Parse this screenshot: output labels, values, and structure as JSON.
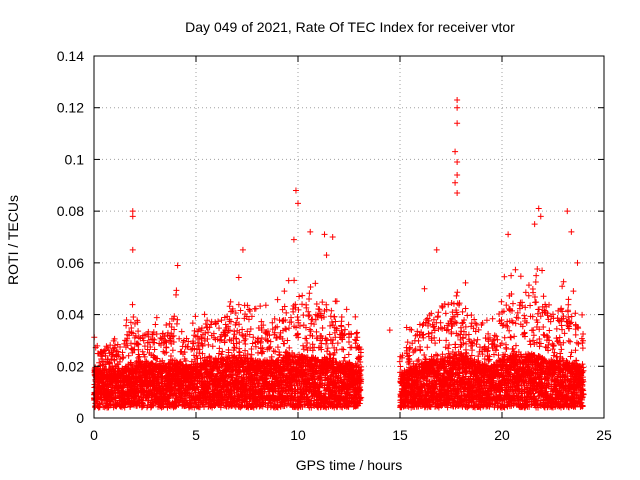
{
  "chart_data": {
    "type": "scatter",
    "title": "Day 049 of 2021, Rate Of TEC Index for receiver vtor",
    "xlabel": "GPS time / hours",
    "ylabel": "ROTI / TECUs",
    "xlim": [
      0,
      25
    ],
    "ylim": [
      0,
      0.14
    ],
    "xticks": [
      0,
      5,
      10,
      15,
      20,
      25
    ],
    "xtick_labels": [
      "0",
      "5",
      "10",
      "15",
      "20",
      "25"
    ],
    "yticks": [
      0,
      0.02,
      0.04,
      0.06,
      0.08,
      0.1,
      0.12,
      0.14
    ],
    "ytick_labels": [
      "0",
      "0.02",
      "0.04",
      "0.06",
      "0.08",
      "0.1",
      "0.12",
      "0.14"
    ],
    "grid": true,
    "marker": "+",
    "color": "#ff0000",
    "data_gap_hours": [
      13.1,
      15.0
    ],
    "notable_points": [
      {
        "x": 1.9,
        "y": 0.08
      },
      {
        "x": 1.9,
        "y": 0.078
      },
      {
        "x": 1.9,
        "y": 0.065
      },
      {
        "x": 4.1,
        "y": 0.059
      },
      {
        "x": 7.3,
        "y": 0.065
      },
      {
        "x": 9.9,
        "y": 0.088
      },
      {
        "x": 10.0,
        "y": 0.083
      },
      {
        "x": 9.8,
        "y": 0.069
      },
      {
        "x": 10.6,
        "y": 0.072
      },
      {
        "x": 11.3,
        "y": 0.071
      },
      {
        "x": 11.7,
        "y": 0.07
      },
      {
        "x": 11.4,
        "y": 0.063
      },
      {
        "x": 17.8,
        "y": 0.123
      },
      {
        "x": 17.8,
        "y": 0.12
      },
      {
        "x": 17.8,
        "y": 0.114
      },
      {
        "x": 17.7,
        "y": 0.103
      },
      {
        "x": 17.8,
        "y": 0.099
      },
      {
        "x": 17.8,
        "y": 0.094
      },
      {
        "x": 17.7,
        "y": 0.091
      },
      {
        "x": 17.8,
        "y": 0.087
      },
      {
        "x": 16.8,
        "y": 0.065
      },
      {
        "x": 21.8,
        "y": 0.081
      },
      {
        "x": 21.9,
        "y": 0.078
      },
      {
        "x": 21.6,
        "y": 0.075
      },
      {
        "x": 23.2,
        "y": 0.08
      },
      {
        "x": 23.4,
        "y": 0.072
      },
      {
        "x": 20.3,
        "y": 0.071
      },
      {
        "x": 23.7,
        "y": 0.06
      },
      {
        "x": 14.5,
        "y": 0.034
      },
      {
        "x": 16.2,
        "y": 0.05
      }
    ],
    "activity_profile": [
      {
        "x": 0.0,
        "base": 0.015,
        "peak": 0.033
      },
      {
        "x": 0.5,
        "base": 0.015,
        "peak": 0.032
      },
      {
        "x": 1.0,
        "base": 0.015,
        "peak": 0.038
      },
      {
        "x": 1.5,
        "base": 0.016,
        "peak": 0.036
      },
      {
        "x": 2.0,
        "base": 0.018,
        "peak": 0.05
      },
      {
        "x": 2.5,
        "base": 0.017,
        "peak": 0.042
      },
      {
        "x": 3.0,
        "base": 0.017,
        "peak": 0.04
      },
      {
        "x": 3.5,
        "base": 0.017,
        "peak": 0.042
      },
      {
        "x": 4.0,
        "base": 0.018,
        "peak": 0.052
      },
      {
        "x": 4.5,
        "base": 0.016,
        "peak": 0.035
      },
      {
        "x": 5.0,
        "base": 0.016,
        "peak": 0.04
      },
      {
        "x": 5.5,
        "base": 0.018,
        "peak": 0.052
      },
      {
        "x": 6.0,
        "base": 0.019,
        "peak": 0.045
      },
      {
        "x": 6.5,
        "base": 0.019,
        "peak": 0.048
      },
      {
        "x": 7.0,
        "base": 0.019,
        "peak": 0.055
      },
      {
        "x": 7.5,
        "base": 0.019,
        "peak": 0.055
      },
      {
        "x": 8.0,
        "base": 0.018,
        "peak": 0.045
      },
      {
        "x": 8.5,
        "base": 0.018,
        "peak": 0.048
      },
      {
        "x": 9.0,
        "base": 0.018,
        "peak": 0.05
      },
      {
        "x": 9.5,
        "base": 0.02,
        "peak": 0.055
      },
      {
        "x": 10.0,
        "base": 0.02,
        "peak": 0.06
      },
      {
        "x": 10.5,
        "base": 0.019,
        "peak": 0.055
      },
      {
        "x": 11.0,
        "base": 0.019,
        "peak": 0.055
      },
      {
        "x": 11.5,
        "base": 0.019,
        "peak": 0.055
      },
      {
        "x": 12.0,
        "base": 0.017,
        "peak": 0.045
      },
      {
        "x": 12.5,
        "base": 0.017,
        "peak": 0.042
      },
      {
        "x": 13.0,
        "base": 0.016,
        "peak": 0.04
      },
      {
        "x": 15.0,
        "base": 0.014,
        "peak": 0.03
      },
      {
        "x": 15.5,
        "base": 0.015,
        "peak": 0.038
      },
      {
        "x": 16.0,
        "base": 0.017,
        "peak": 0.045
      },
      {
        "x": 16.5,
        "base": 0.018,
        "peak": 0.05
      },
      {
        "x": 17.0,
        "base": 0.019,
        "peak": 0.055
      },
      {
        "x": 17.5,
        "base": 0.02,
        "peak": 0.055
      },
      {
        "x": 18.0,
        "base": 0.02,
        "peak": 0.055
      },
      {
        "x": 18.5,
        "base": 0.018,
        "peak": 0.05
      },
      {
        "x": 19.0,
        "base": 0.017,
        "peak": 0.04
      },
      {
        "x": 19.5,
        "base": 0.016,
        "peak": 0.04
      },
      {
        "x": 20.0,
        "base": 0.019,
        "peak": 0.06
      },
      {
        "x": 20.5,
        "base": 0.02,
        "peak": 0.06
      },
      {
        "x": 21.0,
        "base": 0.02,
        "peak": 0.06
      },
      {
        "x": 21.5,
        "base": 0.02,
        "peak": 0.065
      },
      {
        "x": 22.0,
        "base": 0.019,
        "peak": 0.06
      },
      {
        "x": 22.5,
        "base": 0.018,
        "peak": 0.05
      },
      {
        "x": 23.0,
        "base": 0.018,
        "peak": 0.055
      },
      {
        "x": 23.5,
        "base": 0.017,
        "peak": 0.05
      },
      {
        "x": 24.0,
        "base": 0.016,
        "peak": 0.04
      }
    ]
  }
}
